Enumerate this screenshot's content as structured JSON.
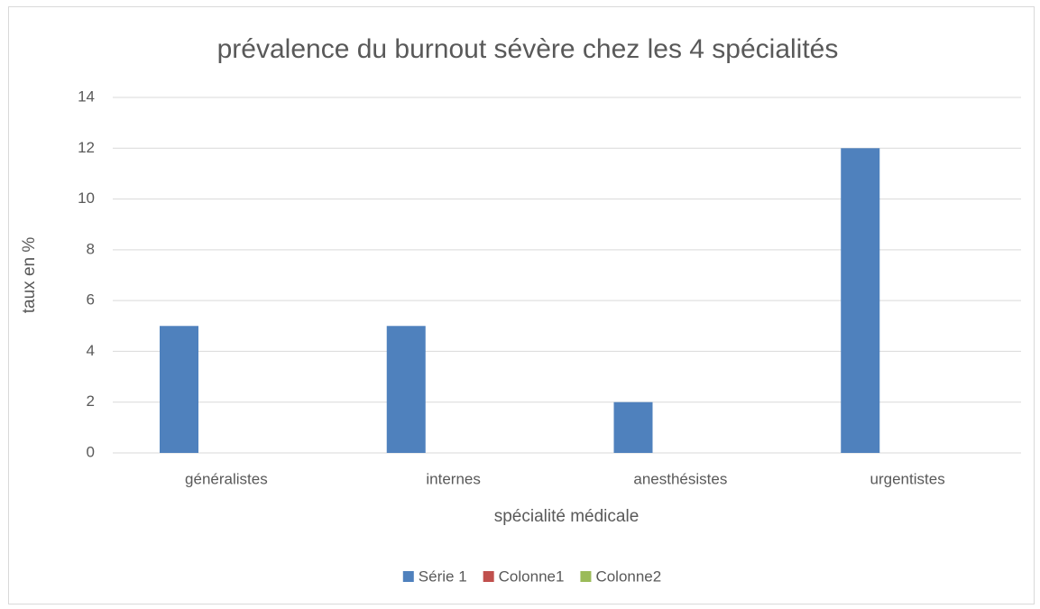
{
  "chart_data": {
    "type": "bar",
    "title": "prévalence du burnout sévère chez les 4 spécialités",
    "x_label": "spécialité médicale",
    "y_label": "taux en %",
    "categories": [
      "généralistes",
      "internes",
      "anesthésistes",
      "urgentistes"
    ],
    "series": [
      {
        "name": "Série 1",
        "color": "#4f81bd",
        "values": [
          5,
          5,
          2,
          12
        ]
      },
      {
        "name": "Colonne1",
        "color": "#c0504d",
        "values": [
          null,
          null,
          null,
          null
        ]
      },
      {
        "name": "Colonne2",
        "color": "#9bbb59",
        "values": [
          null,
          null,
          null,
          null
        ]
      }
    ],
    "ylim": [
      0,
      14
    ],
    "yticks": [
      0,
      2,
      4,
      6,
      8,
      10,
      12,
      14
    ],
    "grid": true,
    "legend": "bottom"
  }
}
